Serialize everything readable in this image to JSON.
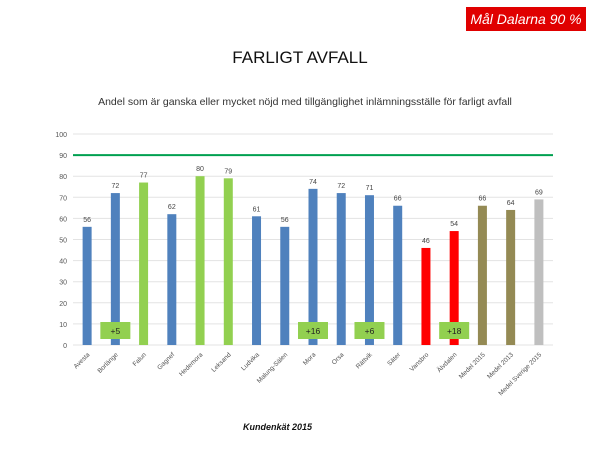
{
  "goal_label": "Mål Dalarna 90 %",
  "page_title": "FARLIGT AVFALL",
  "source": "Kundenkät 2015",
  "colors": {
    "blue": "#4f81bd",
    "green": "#92d050",
    "red": "#ff0000",
    "olive": "#948a54",
    "gray": "#bfbfbf",
    "target": "#00a050",
    "diff_box": "#92d050"
  },
  "chart_data": {
    "type": "bar",
    "title": "Andel som är ganska eller mycket nöjd med tillgänglighet inlämningsställe för farligt avfall",
    "xlabel": "",
    "ylabel": "",
    "ylim": [
      0,
      100
    ],
    "yticks": [
      0,
      10,
      20,
      30,
      40,
      50,
      60,
      70,
      80,
      90,
      100
    ],
    "grid": true,
    "target_line": 90,
    "categories": [
      "Avesta",
      "Borlänge",
      "Falun",
      "Gagnef",
      "Hedemora",
      "Leksand",
      "Ludvika",
      "Malung-Sälen",
      "Mora",
      "Orsa",
      "Rättvik",
      "Säter",
      "Vansbro",
      "Älvdalen",
      "Medel 2015",
      "Medel 2013",
      "Medel Sverige 2015"
    ],
    "values": [
      56,
      72,
      77,
      62,
      80,
      79,
      61,
      56,
      74,
      72,
      71,
      66,
      46,
      54,
      66,
      64,
      69
    ],
    "bar_colors": [
      "blue",
      "blue",
      "green",
      "blue",
      "green",
      "green",
      "blue",
      "blue",
      "blue",
      "blue",
      "blue",
      "blue",
      "red",
      "red",
      "olive",
      "olive",
      "gray"
    ],
    "annotations": [
      {
        "category_index": 1,
        "text": "+5"
      },
      {
        "category_index": 8,
        "text": "+16"
      },
      {
        "category_index": 10,
        "text": "+6"
      },
      {
        "category_index": 13,
        "text": "+18"
      }
    ]
  }
}
